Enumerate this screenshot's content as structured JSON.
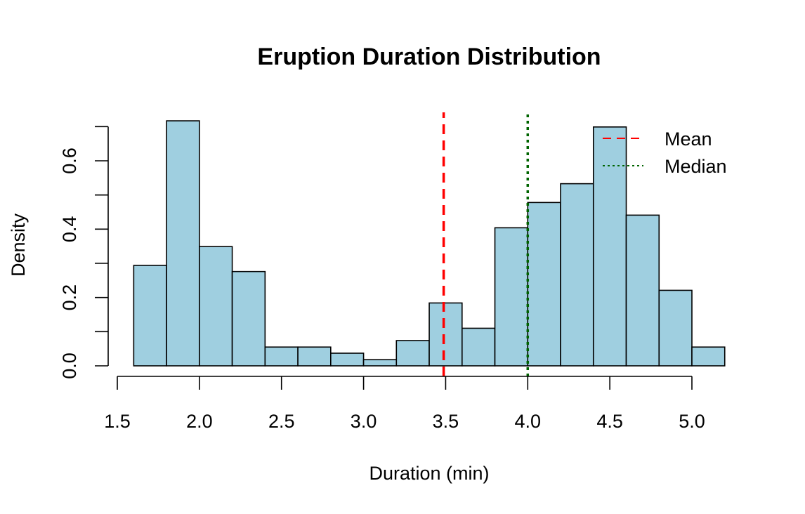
{
  "chart_data": {
    "type": "bar",
    "title": "Eruption Duration Distribution",
    "xlabel": "Duration (min)",
    "ylabel": "Density",
    "xlim": [
      1.5,
      5.2
    ],
    "ylim": [
      0,
      0.7
    ],
    "x_ticks": [
      "1.5",
      "2.0",
      "2.5",
      "3.0",
      "3.5",
      "4.0",
      "4.5",
      "5.0"
    ],
    "y_ticks": [
      "0.0",
      "0.2",
      "0.4",
      "0.6"
    ],
    "bin_width": 0.2,
    "bins": [
      {
        "start": 1.6,
        "end": 1.8,
        "density": 0.294
      },
      {
        "start": 1.8,
        "end": 2.0,
        "density": 0.717
      },
      {
        "start": 2.0,
        "end": 2.2,
        "density": 0.349
      },
      {
        "start": 2.2,
        "end": 2.4,
        "density": 0.276
      },
      {
        "start": 2.4,
        "end": 2.6,
        "density": 0.055
      },
      {
        "start": 2.6,
        "end": 2.8,
        "density": 0.055
      },
      {
        "start": 2.8,
        "end": 3.0,
        "density": 0.037
      },
      {
        "start": 3.0,
        "end": 3.2,
        "density": 0.018
      },
      {
        "start": 3.2,
        "end": 3.4,
        "density": 0.074
      },
      {
        "start": 3.4,
        "end": 3.6,
        "density": 0.184
      },
      {
        "start": 3.6,
        "end": 3.8,
        "density": 0.11
      },
      {
        "start": 3.8,
        "end": 4.0,
        "density": 0.404
      },
      {
        "start": 4.0,
        "end": 4.2,
        "density": 0.478
      },
      {
        "start": 4.2,
        "end": 4.4,
        "density": 0.533
      },
      {
        "start": 4.4,
        "end": 4.6,
        "density": 0.699
      },
      {
        "start": 4.6,
        "end": 4.8,
        "density": 0.441
      },
      {
        "start": 4.8,
        "end": 5.0,
        "density": 0.221
      },
      {
        "start": 5.0,
        "end": 5.2,
        "density": 0.055
      }
    ],
    "reference_lines": [
      {
        "name": "Mean",
        "x": 3.488,
        "color": "#ff0000",
        "style": "dashed"
      },
      {
        "name": "Median",
        "x": 4.0,
        "color": "#006400",
        "style": "dotted"
      }
    ],
    "legend": {
      "position": "top-right",
      "entries": [
        "Mean",
        "Median"
      ]
    },
    "bar_color": "#9fcfe0",
    "bar_border_color": "#000000",
    "grid": false
  }
}
